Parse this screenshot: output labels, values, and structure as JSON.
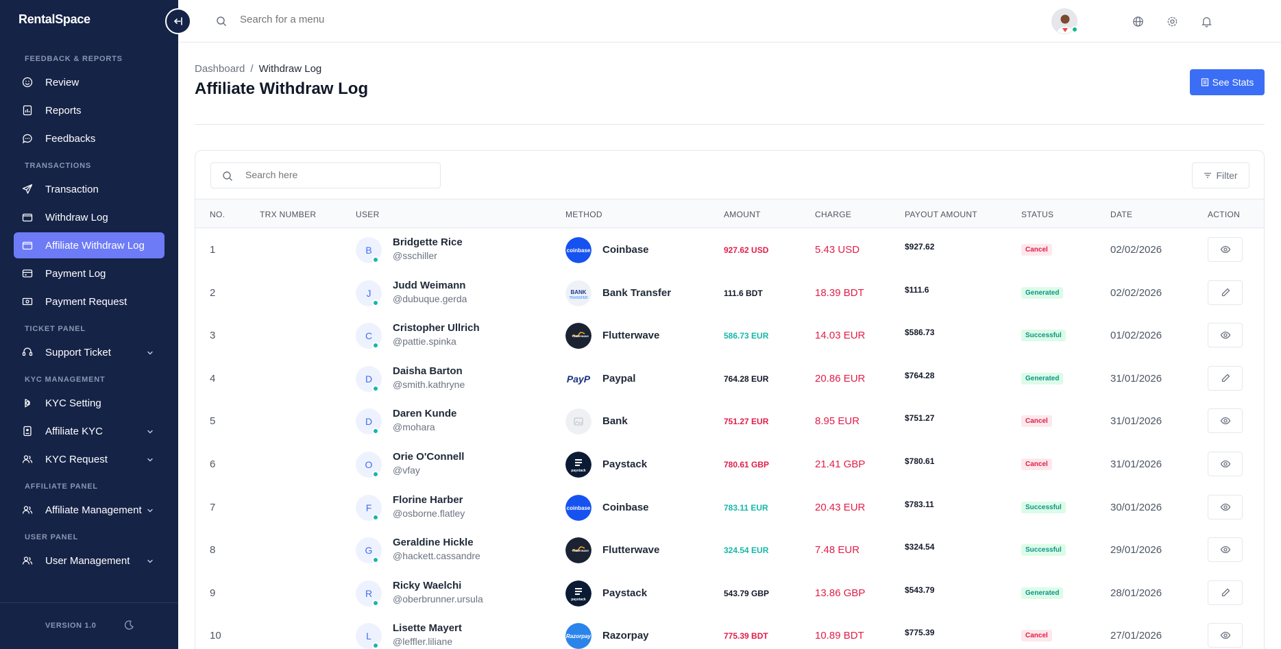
{
  "app": {
    "logo": "RentalSpace",
    "version": "VERSION 1.0"
  },
  "topbar": {
    "search_placeholder": "Search for a menu"
  },
  "sidebar": {
    "sections": [
      {
        "title": "FEEDBACK & REPORTS",
        "items": [
          {
            "label": "Review",
            "icon": "smile-icon",
            "active": false,
            "has_children": false
          },
          {
            "label": "Reports",
            "icon": "report-icon",
            "active": false,
            "has_children": false
          },
          {
            "label": "Feedbacks",
            "icon": "chat-icon",
            "active": false,
            "has_children": false
          }
        ]
      },
      {
        "title": "TRANSACTIONS",
        "items": [
          {
            "label": "Transaction",
            "icon": "send-icon",
            "active": false,
            "has_children": false
          },
          {
            "label": "Withdraw Log",
            "icon": "wallet-icon",
            "active": false,
            "has_children": false
          },
          {
            "label": "Affiliate Withdraw Log",
            "icon": "wallet-icon",
            "active": true,
            "has_children": false
          },
          {
            "label": "Payment Log",
            "icon": "card-icon",
            "active": false,
            "has_children": false
          },
          {
            "label": "Payment Request",
            "icon": "money-icon",
            "active": false,
            "has_children": false
          }
        ]
      },
      {
        "title": "TICKET PANEL",
        "items": [
          {
            "label": "Support Ticket",
            "icon": "support-icon",
            "active": false,
            "has_children": true
          }
        ]
      },
      {
        "title": "KYC MANAGEMENT",
        "items": [
          {
            "label": "KYC Setting",
            "icon": "settings-icon",
            "active": false,
            "has_children": false
          },
          {
            "label": "Affiliate KYC",
            "icon": "id-card-icon",
            "active": false,
            "has_children": true
          },
          {
            "label": "KYC Request",
            "icon": "users-icon",
            "active": false,
            "has_children": true
          }
        ]
      },
      {
        "title": "AFFILIATE PANEL",
        "items": [
          {
            "label": "Affiliate Management",
            "icon": "users-icon",
            "active": false,
            "has_children": true
          }
        ]
      },
      {
        "title": "USER PANEL",
        "items": [
          {
            "label": "User Management",
            "icon": "users-icon",
            "active": false,
            "has_children": true
          }
        ]
      }
    ]
  },
  "breadcrumb": {
    "home": "Dashboard",
    "separator": "/",
    "current": "Withdraw Log"
  },
  "page": {
    "title": "Affiliate Withdraw Log",
    "stats_button": "See Stats",
    "search_placeholder": "Search here",
    "filter_label": "Filter"
  },
  "table": {
    "columns": [
      "NO.",
      "TRX NUMBER",
      "USER",
      "METHOD",
      "AMOUNT",
      "CHARGE",
      "PAYOUT AMOUNT",
      "STATUS",
      "DATE",
      "ACTION"
    ],
    "rows": [
      {
        "no": "1",
        "initial": "B",
        "name": "Bridgette Rice",
        "handle": "@sschiller",
        "method": "Coinbase",
        "method_logo": "coinbase",
        "amount": "927.62 USD",
        "amount_color": "red",
        "charge": "5.43 USD",
        "payout": "$927.62",
        "status": "Cancel",
        "date": "02/02/2026",
        "action": "view"
      },
      {
        "no": "2",
        "initial": "J",
        "name": "Judd Weimann",
        "handle": "@dubuque.gerda",
        "method": "Bank Transfer",
        "method_logo": "bank",
        "amount": "111.6 BDT",
        "amount_color": "dark",
        "charge": "18.39 BDT",
        "payout": "$111.6",
        "status": "Generated",
        "date": "02/02/2026",
        "action": "edit"
      },
      {
        "no": "3",
        "initial": "C",
        "name": "Cristopher Ullrich",
        "handle": "@pattie.spinka",
        "method": "Flutterwave",
        "method_logo": "flutterwave",
        "amount": "586.73 EUR",
        "amount_color": "teal",
        "charge": "14.03 EUR",
        "payout": "$586.73",
        "status": "Successful",
        "date": "01/02/2026",
        "action": "view"
      },
      {
        "no": "4",
        "initial": "D",
        "name": "Daisha Barton",
        "handle": "@smith.kathryne",
        "method": "Paypal",
        "method_logo": "paypal",
        "amount": "764.28 EUR",
        "amount_color": "dark",
        "charge": "20.86 EUR",
        "payout": "$764.28",
        "status": "Generated",
        "date": "31/01/2026",
        "action": "edit"
      },
      {
        "no": "5",
        "initial": "D",
        "name": "Daren Kunde",
        "handle": "@mohara",
        "method": "Bank",
        "method_logo": "placeholder",
        "amount": "751.27 EUR",
        "amount_color": "red",
        "charge": "8.95 EUR",
        "payout": "$751.27",
        "status": "Cancel",
        "date": "31/01/2026",
        "action": "view"
      },
      {
        "no": "6",
        "initial": "O",
        "name": "Orie O'Connell",
        "handle": "@vfay",
        "method": "Paystack",
        "method_logo": "paystack",
        "amount": "780.61 GBP",
        "amount_color": "red",
        "charge": "21.41 GBP",
        "payout": "$780.61",
        "status": "Cancel",
        "date": "31/01/2026",
        "action": "view"
      },
      {
        "no": "7",
        "initial": "F",
        "name": "Florine Harber",
        "handle": "@osborne.flatley",
        "method": "Coinbase",
        "method_logo": "coinbase",
        "amount": "783.11 EUR",
        "amount_color": "teal",
        "charge": "20.43 EUR",
        "payout": "$783.11",
        "status": "Successful",
        "date": "30/01/2026",
        "action": "view"
      },
      {
        "no": "8",
        "initial": "G",
        "name": "Geraldine Hickle",
        "handle": "@hackett.cassandre",
        "method": "Flutterwave",
        "method_logo": "flutterwave",
        "amount": "324.54 EUR",
        "amount_color": "teal",
        "charge": "7.48 EUR",
        "payout": "$324.54",
        "status": "Successful",
        "date": "29/01/2026",
        "action": "view"
      },
      {
        "no": "9",
        "initial": "R",
        "name": "Ricky Waelchi",
        "handle": "@oberbrunner.ursula",
        "method": "Paystack",
        "method_logo": "paystack",
        "amount": "543.79 GBP",
        "amount_color": "dark",
        "charge": "13.86 GBP",
        "payout": "$543.79",
        "status": "Generated",
        "date": "28/01/2026",
        "action": "edit"
      },
      {
        "no": "10",
        "initial": "L",
        "name": "Lisette Mayert",
        "handle": "@leffler.liliane",
        "method": "Razorpay",
        "method_logo": "razorpay",
        "amount": "775.39 BDT",
        "amount_color": "red",
        "charge": "10.89 BDT",
        "payout": "$775.39",
        "status": "Cancel",
        "date": "27/01/2026",
        "action": "view"
      }
    ]
  },
  "colors": {
    "sidebar_bg": "#152347",
    "active_item": "#6d7bf7",
    "primary": "#3b6ef5",
    "red": "#e11d48",
    "teal": "#14b8a6"
  }
}
